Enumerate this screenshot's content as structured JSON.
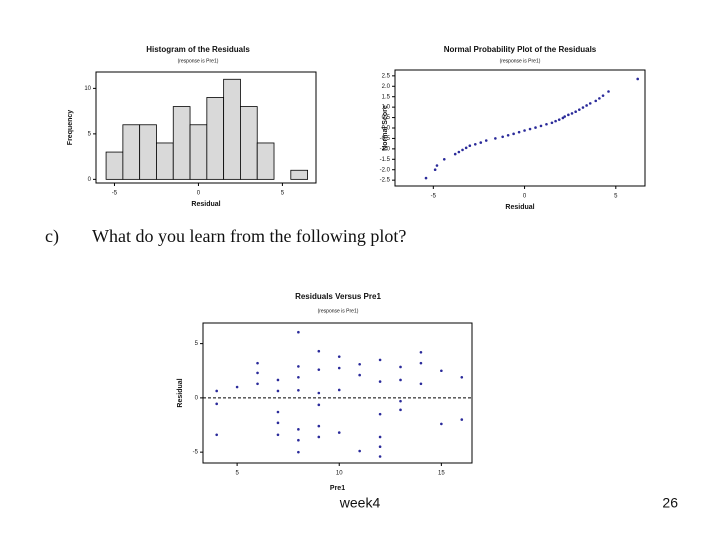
{
  "chart_data": [
    {
      "type": "histogram",
      "title": "Histogram of the Residuals",
      "subtitle": "(response is Pre1)",
      "x_label": "Residual",
      "y_label": "Frequency",
      "bins": [
        -5.5,
        -4.5,
        -3.5,
        -2.5,
        -1.5,
        -0.5,
        0.5,
        1.5,
        2.5,
        3.5,
        4.5,
        5.5,
        6.5
      ],
      "values": [
        3,
        6,
        6,
        4,
        8,
        6,
        9,
        11,
        8,
        4,
        0,
        1
      ],
      "color": "#d9d9d9",
      "xlim": [
        -6.1,
        7
      ],
      "ylim": [
        -0.4,
        11.8
      ],
      "xticks": [
        -5,
        0,
        5
      ],
      "yticks": [
        0,
        5,
        10
      ]
    },
    {
      "type": "scatter",
      "title": "Normal Probability Plot of the Residuals",
      "subtitle": "(response is Pre1)",
      "x_label": "Residual",
      "y_label": "Normal Score",
      "x": [
        -5.4,
        -4.9,
        -4.8,
        -4.4,
        -3.8,
        -3.6,
        -3.4,
        -3.2,
        -3.0,
        -2.7,
        -2.4,
        -2.1,
        -1.6,
        -1.2,
        -0.9,
        -0.6,
        -0.3,
        0.0,
        0.3,
        0.6,
        0.9,
        1.2,
        1.5,
        1.7,
        1.9,
        2.1,
        2.2,
        2.4,
        2.6,
        2.8,
        3.0,
        3.2,
        3.4,
        3.6,
        3.9,
        4.1,
        4.3,
        4.6,
        6.2
      ],
      "values": [
        -2.4,
        -2.0,
        -1.8,
        -1.5,
        -1.25,
        -1.15,
        -1.05,
        -0.95,
        -0.85,
        -0.78,
        -0.7,
        -0.6,
        -0.5,
        -0.42,
        -0.35,
        -0.28,
        -0.2,
        -0.12,
        -0.05,
        0.02,
        0.1,
        0.18,
        0.25,
        0.33,
        0.4,
        0.48,
        0.55,
        0.63,
        0.7,
        0.78,
        0.88,
        0.98,
        1.08,
        1.18,
        1.3,
        1.42,
        1.55,
        1.75,
        2.35
      ],
      "color": "#2a2a9a",
      "xlim": [
        -7.1,
        6.6
      ],
      "ylim": [
        -2.78,
        2.78
      ],
      "xticks": [
        -5,
        0,
        5
      ],
      "yticks": [
        2.5,
        {
          "value": 2.0,
          "label": "2.0"
        },
        1.5,
        {
          "value": 1.0,
          "label": "1.0"
        },
        0.5,
        {
          "value": 0.0,
          "label": "0.0"
        },
        -0.5,
        {
          "value": -1.0,
          "label": "-1.0"
        },
        -1.5,
        {
          "value": -2.0,
          "label": "-2.0"
        },
        -2.5
      ]
    },
    {
      "type": "scatter",
      "title": "Residuals Versus Pre1",
      "subtitle": "(response is Pre1)",
      "x_label": "Pre1",
      "y_label": "Residual",
      "x": [
        4,
        4,
        4,
        5,
        6,
        6,
        6,
        7,
        7,
        7,
        7,
        7,
        8,
        8,
        8,
        8,
        8,
        8,
        8,
        9,
        9,
        9,
        9,
        9,
        9,
        10,
        10,
        10,
        10,
        11,
        11,
        11,
        12,
        12,
        12,
        12,
        12,
        12,
        13,
        13,
        13,
        13,
        14,
        14,
        14,
        15,
        15,
        16,
        16
      ],
      "values": [
        0.64,
        -0.55,
        -3.4,
        1.0,
        3.2,
        2.3,
        1.3,
        1.65,
        0.64,
        -1.3,
        -2.3,
        -3.4,
        6.05,
        2.9,
        1.9,
        0.7,
        -2.9,
        -3.9,
        -5.0,
        4.3,
        2.6,
        0.45,
        -0.64,
        -2.6,
        -3.6,
        3.8,
        2.75,
        0.73,
        -3.2,
        3.1,
        2.1,
        -4.9,
        3.5,
        1.5,
        -1.5,
        -3.6,
        -4.5,
        -5.4,
        2.85,
        1.65,
        -0.3,
        -1.1,
        4.2,
        3.2,
        1.3,
        2.5,
        -2.4,
        1.9,
        -2.0
      ],
      "color": "#2a2a9a",
      "xlim": [
        3.33,
        16.5
      ],
      "ylim": [
        -6.0,
        6.9
      ],
      "hline": 0,
      "xticks": [
        5,
        10,
        15
      ],
      "yticks": [
        -5,
        0,
        5
      ]
    }
  ],
  "question": {
    "label": "c)",
    "text": "What do you learn from the following  plot?"
  },
  "footer": {
    "text": "week4",
    "page": 26
  }
}
